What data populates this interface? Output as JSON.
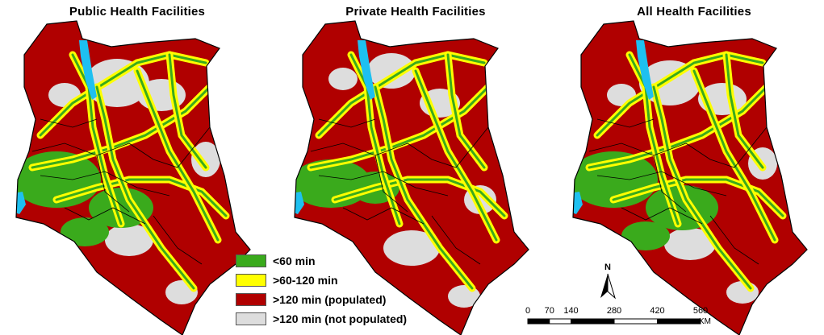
{
  "panels": [
    {
      "title": "Public Health Facilities"
    },
    {
      "title": "Private Health Facilities"
    },
    {
      "title": "All Health Facilities"
    }
  ],
  "legend": [
    {
      "label": "<60 min",
      "color": "#3aaa1c"
    },
    {
      "label": ">60-120 min",
      "color": "#ffff00"
    },
    {
      "label": ">120 min (populated)",
      "color": "#b00000"
    },
    {
      "label": ">120 min (not populated)",
      "color": "#dddddd"
    }
  ],
  "colors": {
    "water": "#1ec0f0",
    "boundary": "#000000"
  },
  "north_arrow": {
    "label": "N",
    "icon": "north-arrow-icon"
  },
  "scale_bar": {
    "ticks": [
      "0",
      "70",
      "140",
      "280",
      "420",
      "560"
    ],
    "tick_values": [
      0,
      70,
      140,
      280,
      420,
      560
    ],
    "unit": "KM"
  }
}
